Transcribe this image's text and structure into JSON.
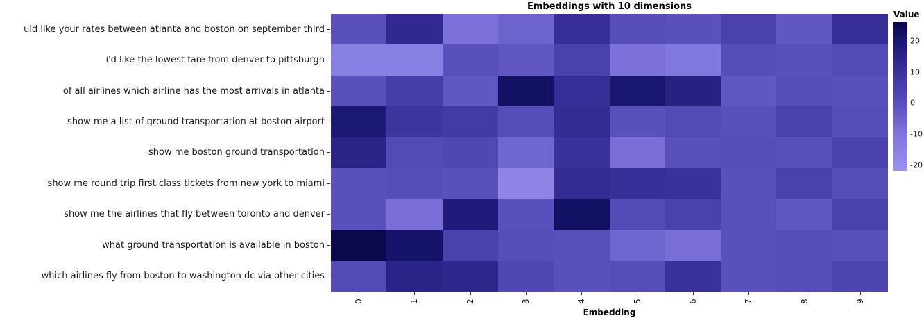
{
  "chart_data": {
    "type": "heatmap",
    "title": "Embeddings with 10 dimensions",
    "xlabel": "Embedding",
    "colorbar_label": "Value",
    "colorbar_ticks": [
      20,
      10,
      0,
      -10,
      -20
    ],
    "x_ticks": [
      "0",
      "1",
      "2",
      "3",
      "4",
      "5",
      "6",
      "7",
      "8",
      "9"
    ],
    "rows": [
      "uld like your rates between atlanta and boston on september third",
      "i'd like the lowest fare from denver to pittsburgh",
      "of all airlines which airline has the most arrivals in atlanta",
      "show me a list of ground transportation at boston airport",
      "show me boston ground transportation",
      "show me round trip first class tickets from new york to miami",
      "show me the airlines that fly between toronto and denver",
      "what ground transportation is available in boston",
      "which airlines fly from boston to washington dc via other cities"
    ],
    "values": [
      [
        0,
        13,
        -9,
        -5,
        11,
        1,
        0,
        5,
        -2,
        11
      ],
      [
        -14,
        -14,
        0,
        -2,
        5,
        -9,
        -11,
        1,
        0,
        2
      ],
      [
        0,
        6,
        -2,
        22,
        11,
        20,
        16,
        -2,
        1,
        0
      ],
      [
        19,
        9,
        7,
        1,
        12,
        0,
        2,
        0,
        5,
        1
      ],
      [
        15,
        2,
        3,
        -6,
        10,
        -8,
        0,
        1,
        0,
        5
      ],
      [
        0,
        1,
        0,
        -16,
        12,
        11,
        10,
        0,
        5,
        1
      ],
      [
        0,
        -8,
        18,
        0,
        22,
        2,
        5,
        0,
        -2,
        5
      ],
      [
        25,
        21,
        5,
        1,
        0,
        -6,
        -8,
        0,
        1,
        0
      ],
      [
        2,
        15,
        14,
        3,
        0,
        1,
        10,
        0,
        1,
        4
      ]
    ],
    "vmin": -22,
    "vmax": 26,
    "colorscale": [
      {
        "v": -22,
        "color": "#9B93F0"
      },
      {
        "v": -10,
        "color": "#7F75DB"
      },
      {
        "v": 0,
        "color": "#5A50BC"
      },
      {
        "v": 10,
        "color": "#3B319B"
      },
      {
        "v": 20,
        "color": "#191672"
      },
      {
        "v": 26,
        "color": "#080645"
      }
    ],
    "legend_position": "right",
    "grid": false
  }
}
